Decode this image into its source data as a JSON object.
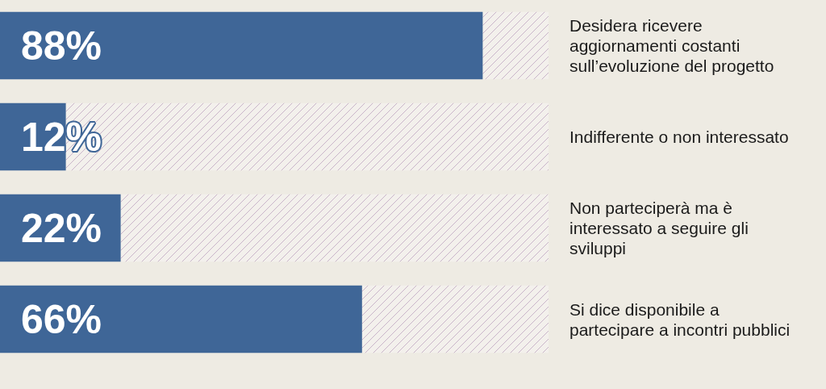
{
  "chart_data": {
    "type": "bar",
    "orientation": "horizontal",
    "categories": [
      "Desidera ricevere aggiornamenti costanti sull’evoluzione del progetto",
      "Indifferente o non interessato",
      "Non parteciperà ma è interessato a seguire gli sviluppi",
      "Si dice disponibile a partecipare a incontri pubblici"
    ],
    "stacked": true,
    "series": [
      {
        "color": "#3f6697",
        "values": [
          88,
          12,
          22,
          66
        ],
        "value_labels": [
          "88%",
          "12%",
          "22%",
          "66%"
        ]
      },
      {
        "color": "#f3f0ec",
        "values": [
          12,
          88,
          78,
          34
        ]
      }
    ],
    "xlim": [
      0,
      100
    ],
    "grid": false
  }
}
